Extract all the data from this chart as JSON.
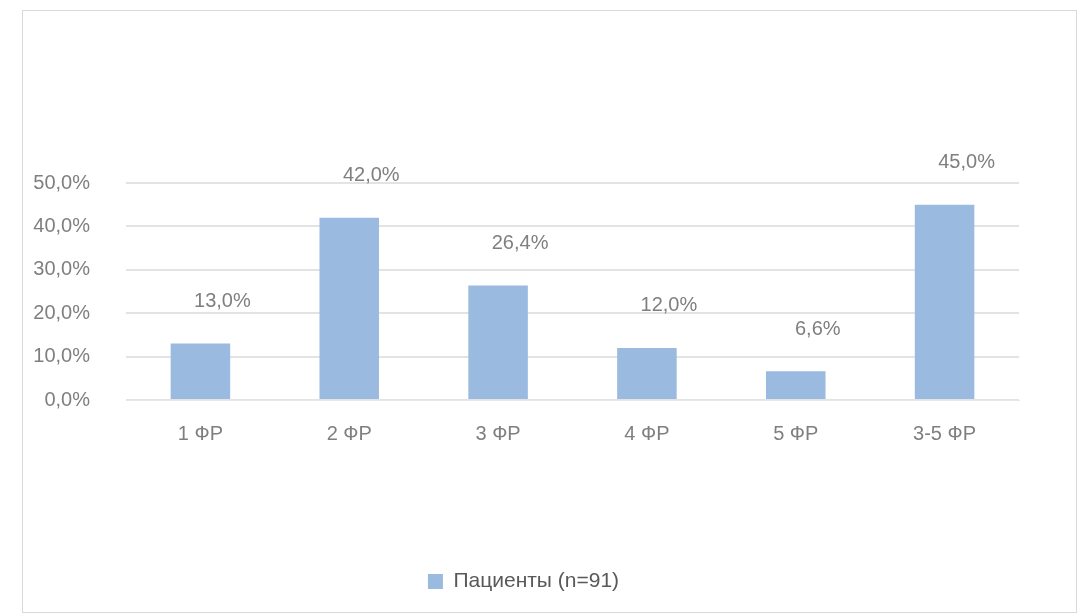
{
  "chart_data": {
    "type": "bar",
    "categories": [
      "1 ФР",
      "2 ФР",
      "3 ФР",
      "4 ФР",
      "5 ФР",
      "3-5 ФР"
    ],
    "series": [
      {
        "name": "Пациенты (n=91)",
        "color": "#9bbae0",
        "values": [
          13.0,
          42.0,
          26.4,
          12.0,
          6.6,
          45.0
        ],
        "value_labels": [
          "13,0%",
          "42,0%",
          "26,4%",
          "12,0%",
          "6,6%",
          "45,0%"
        ]
      }
    ],
    "ylim": [
      0,
      50
    ],
    "yticks": [
      {
        "value": 0,
        "label": "0,0%"
      },
      {
        "value": 10,
        "label": "10,0%"
      },
      {
        "value": 20,
        "label": "20,0%"
      },
      {
        "value": 30,
        "label": "30,0%"
      },
      {
        "value": 40,
        "label": "40,0%"
      },
      {
        "value": 50,
        "label": "50,0%"
      }
    ],
    "grid": "y",
    "legend": "bottom"
  }
}
